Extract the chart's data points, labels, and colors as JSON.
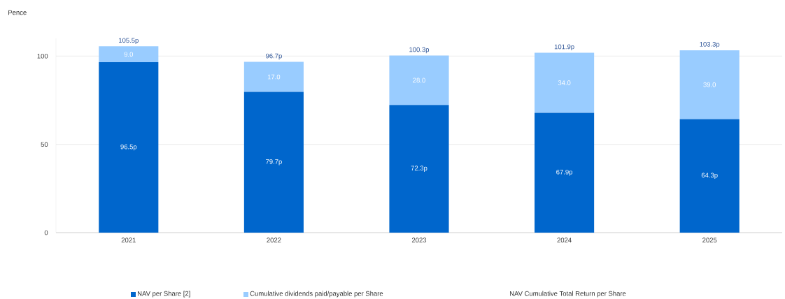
{
  "chart_data": {
    "type": "bar",
    "stacked": true,
    "ylabel": "Pence",
    "categories": [
      "2021",
      "2022",
      "2023",
      "2024",
      "2025"
    ],
    "series": [
      {
        "name": "NAV per Share [2]",
        "color": "#0066cc",
        "values": [
          96.5,
          79.7,
          72.3,
          67.9,
          64.3
        ],
        "value_labels": [
          "96.5p",
          "79.7p",
          "72.3p",
          "67.9p",
          "64.3p"
        ]
      },
      {
        "name": "Cumulative dividends paid/payable per Share",
        "color": "#99ccff",
        "values": [
          9.0,
          17.0,
          28.0,
          34.0,
          39.0
        ],
        "value_labels": [
          "9.0",
          "17.0",
          "28.0",
          "34.0",
          "39.0"
        ]
      }
    ],
    "totals": [
      "105.5p",
      "96.7p",
      "100.3p",
      "101.9p",
      "103.3p"
    ],
    "annotations": [
      "NAV Cumulative Total Return per Share"
    ],
    "ylim": [
      0,
      110
    ],
    "yticks": [
      0,
      50,
      100
    ],
    "grid": "y",
    "legend": "bottom"
  }
}
